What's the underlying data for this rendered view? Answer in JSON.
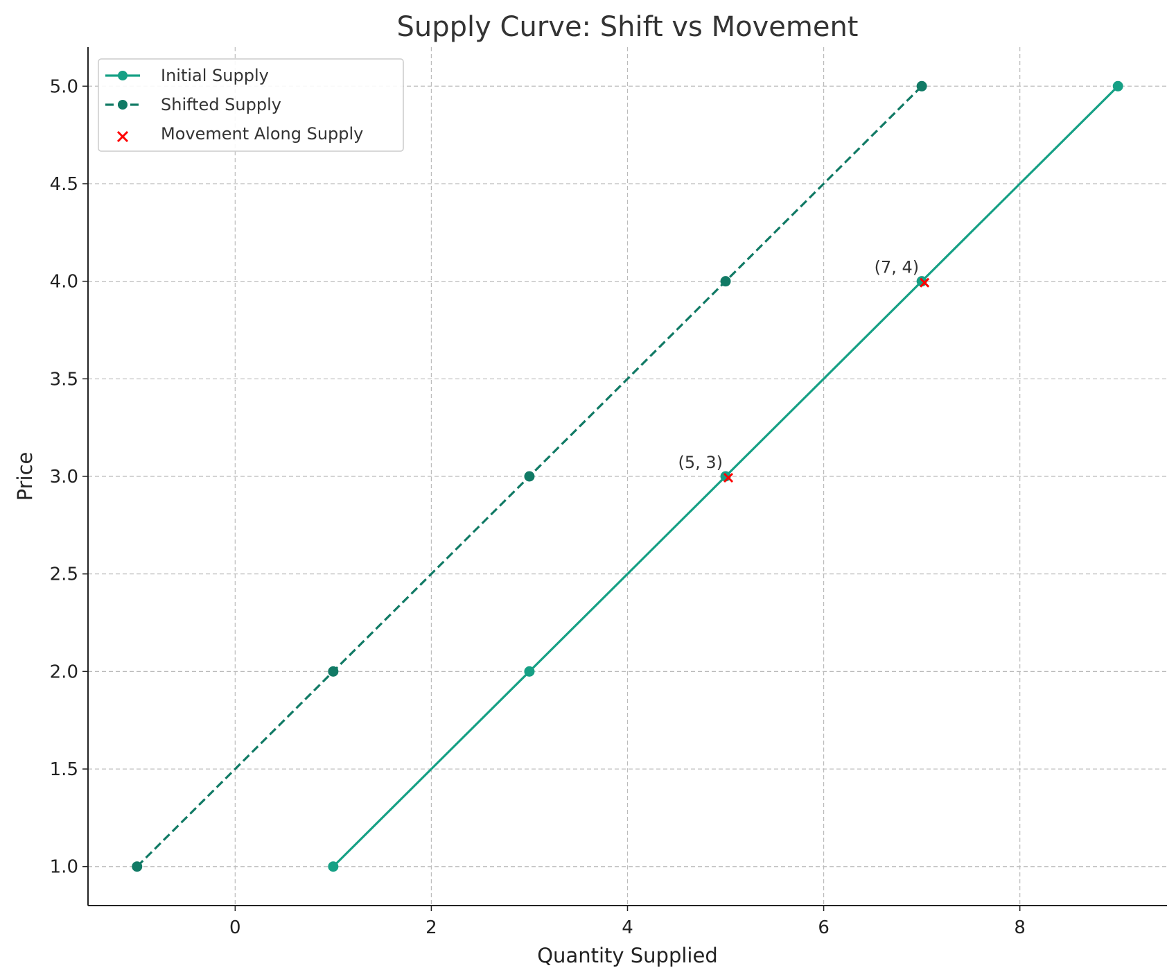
{
  "chart_data": {
    "type": "line",
    "title": "Supply Curve: Shift vs Movement",
    "xlabel": "Quantity Supplied",
    "ylabel": "Price",
    "xlim": [
      -1.5,
      9.5
    ],
    "ylim": [
      0.8,
      5.2
    ],
    "xticks": [
      0,
      2,
      4,
      6,
      8
    ],
    "yticks": [
      1.0,
      1.5,
      2.0,
      2.5,
      3.0,
      3.5,
      4.0,
      4.5,
      5.0
    ],
    "xtick_labels": [
      "0",
      "2",
      "4",
      "6",
      "8"
    ],
    "ytick_labels": [
      "1.0",
      "1.5",
      "2.0",
      "2.5",
      "3.0",
      "3.5",
      "4.0",
      "4.5",
      "5.0"
    ],
    "grid": true,
    "legend_position": "top-left",
    "series": [
      {
        "name": "Initial Supply",
        "style": "solid",
        "marker": "circle",
        "color": "#16a085",
        "x": [
          1,
          3,
          5,
          7,
          9
        ],
        "y": [
          1,
          2,
          3,
          4,
          5
        ]
      },
      {
        "name": "Shifted Supply",
        "style": "dashed",
        "marker": "circle",
        "color": "#117a65",
        "x": [
          -1,
          1,
          3,
          5,
          7
        ],
        "y": [
          1,
          2,
          3,
          4,
          5
        ]
      },
      {
        "name": "Movement Along Supply",
        "style": "scatter",
        "marker": "x",
        "color": "#ff0000",
        "x": [
          5,
          7
        ],
        "y": [
          3,
          4
        ]
      }
    ],
    "annotations": [
      {
        "text": "(5, 3)",
        "x": 5,
        "y": 3
      },
      {
        "text": "(7, 4)",
        "x": 7,
        "y": 4
      }
    ]
  }
}
